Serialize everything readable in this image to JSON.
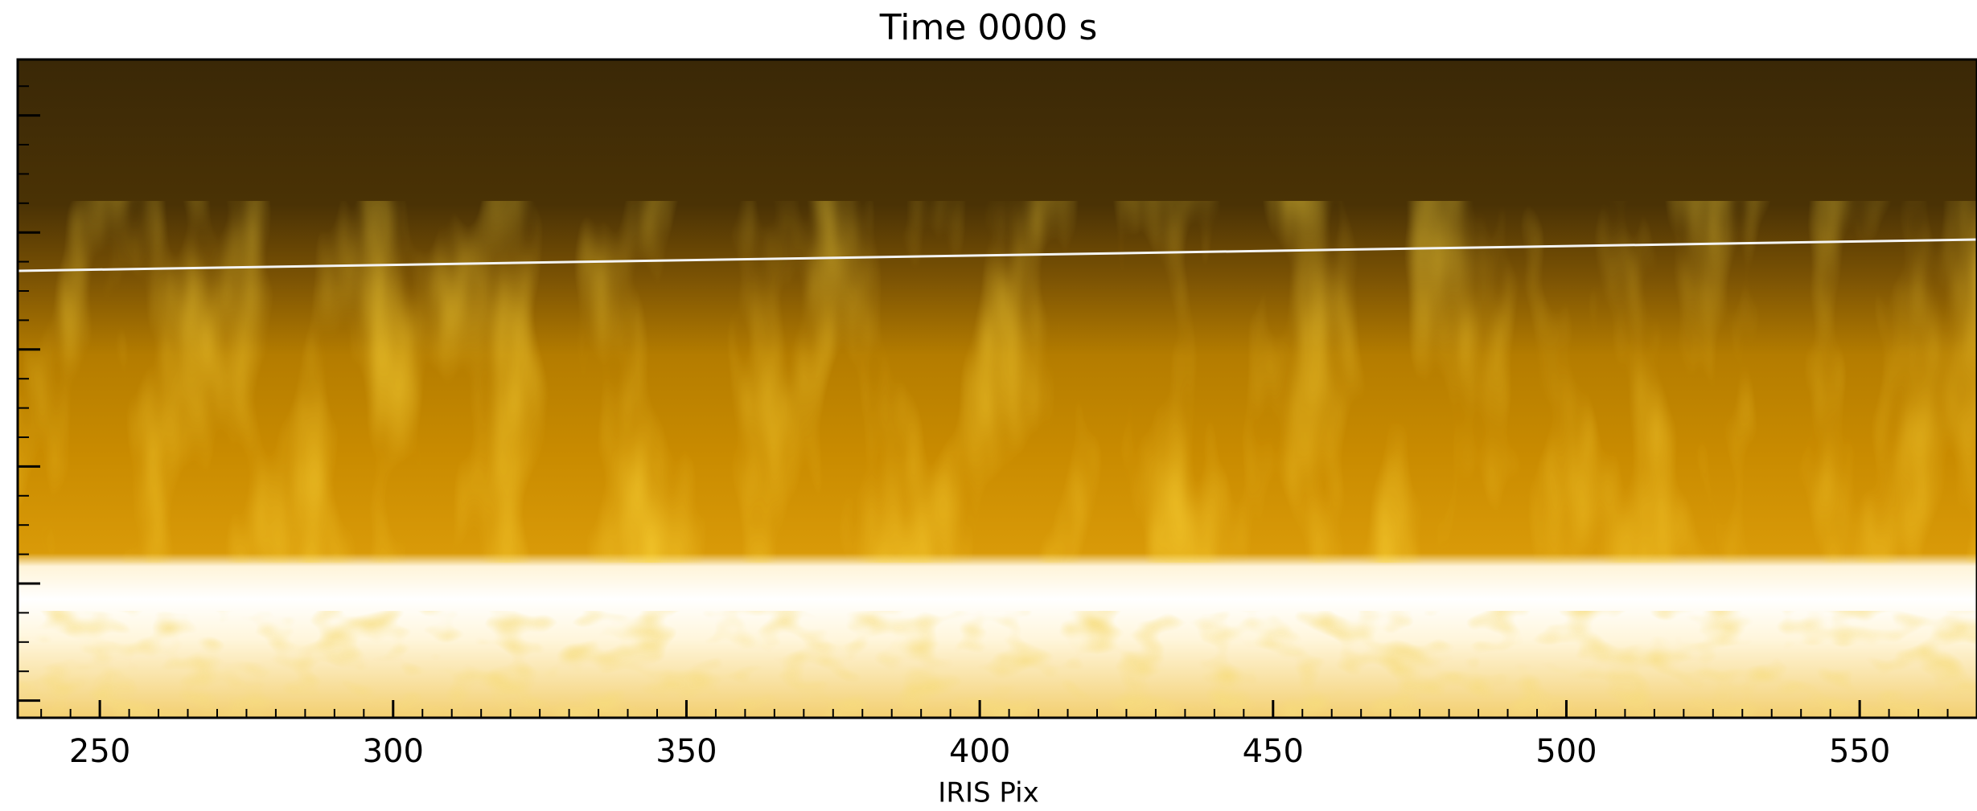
{
  "chart_data": {
    "type": "image",
    "title": "Time 0000 s",
    "x_label": "IRIS Pix",
    "xlim": [
      236,
      570
    ],
    "xticks": [
      250,
      300,
      350,
      400,
      450,
      500,
      550
    ]
  }
}
